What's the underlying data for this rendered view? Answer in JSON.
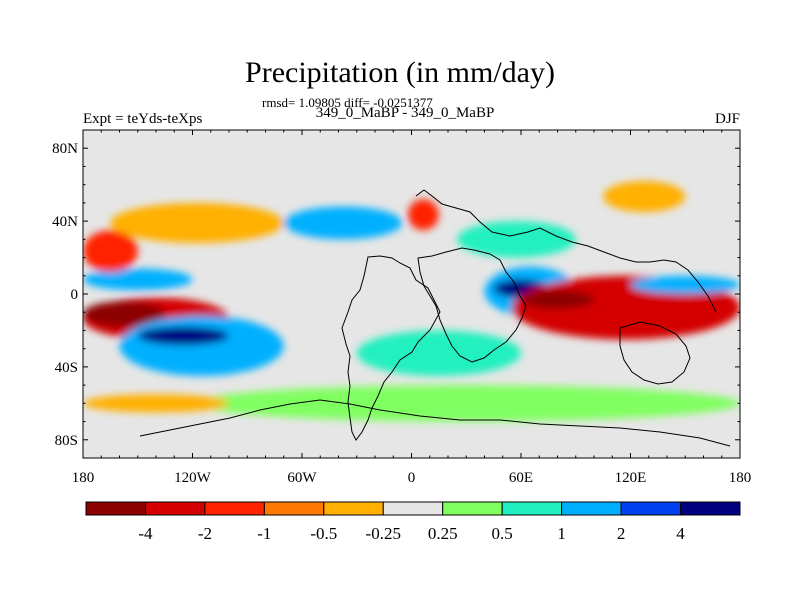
{
  "title": "Precipitation (in mm/day)",
  "stats_line": "rmsd= 1.09805 diff= -0.0251377",
  "left_string": "Expt = teYds-teXps",
  "center_string": "349_0_MaBP - 349_0_MaBP",
  "right_string": "DJF",
  "chart_data": {
    "type": "heatmap",
    "title": "Precipitation (in mm/day)",
    "subtitle": "349_0_MaBP - 349_0_MaBP",
    "xlabel": "",
    "ylabel": "",
    "xlim": [
      -180,
      180
    ],
    "ylim": [
      -90,
      90
    ],
    "x_ticks": [
      -180,
      -120,
      -60,
      0,
      60,
      120,
      180
    ],
    "x_tick_labels": [
      "180",
      "120W",
      "60W",
      "0",
      "60E",
      "120E",
      "180"
    ],
    "y_ticks": [
      80,
      40,
      0,
      -40,
      -80
    ],
    "y_tick_labels": [
      "80N",
      "40N",
      "0",
      "40S",
      "80S"
    ],
    "colorbar": {
      "levels": [
        -4,
        -2,
        -1,
        -0.5,
        -0.25,
        0.25,
        0.5,
        1,
        2,
        4
      ],
      "labels": [
        "-4",
        "-2",
        "-1",
        "-0.5",
        "-0.25",
        "0.25",
        "0.5",
        "1",
        "2",
        "4"
      ],
      "colors": [
        "#8c0000",
        "#d40000",
        "#ff2400",
        "#ff7a00",
        "#ffb000",
        "#e6e6e6",
        "#80ff60",
        "#20f0c0",
        "#00b0ff",
        "#0040f0",
        "#000080"
      ]
    },
    "background_color": "#e6e6e6",
    "anomaly_regions": [
      {
        "name": "e-pacific-dry",
        "lon": [
          -180,
          -100
        ],
        "lat": [
          -25,
          -2
        ],
        "value": -2.5
      },
      {
        "name": "e-pacific-dry-core",
        "lon": [
          -180,
          -135
        ],
        "lat": [
          -18,
          -4
        ],
        "value": -4.5
      },
      {
        "name": "s-pacific-wet",
        "lon": [
          -160,
          -70
        ],
        "lat": [
          -45,
          -12
        ],
        "value": 1.5
      },
      {
        "name": "s-pacific-wet-core",
        "lon": [
          -150,
          -100
        ],
        "lat": [
          -28,
          -18
        ],
        "value": 5
      },
      {
        "name": "n-pacific-wet",
        "lon": [
          -180,
          -120
        ],
        "lat": [
          2,
          14
        ],
        "value": 1.5
      },
      {
        "name": "n-pacific-dry",
        "lon": [
          -180,
          -150
        ],
        "lat": [
          12,
          35
        ],
        "value": -1.5
      },
      {
        "name": "n-atlantic-dry-band",
        "lon": [
          -165,
          -70
        ],
        "lat": [
          28,
          50
        ],
        "value": -0.4
      },
      {
        "name": "n-atlantic-wet",
        "lon": [
          -70,
          -5
        ],
        "lat": [
          30,
          48
        ],
        "value": 1
      },
      {
        "name": "europe-dry",
        "lon": [
          -2,
          15
        ],
        "lat": [
          35,
          52
        ],
        "value": -2
      },
      {
        "name": "n-africa-wet",
        "lon": [
          25,
          90
        ],
        "lat": [
          20,
          40
        ],
        "value": 0.8
      },
      {
        "name": "indian-wet",
        "lon": [
          40,
          90
        ],
        "lat": [
          -12,
          15
        ],
        "value": 1.5
      },
      {
        "name": "indian-wet-core",
        "lon": [
          45,
          75
        ],
        "lat": [
          -2,
          8
        ],
        "value": 5
      },
      {
        "name": "maritime-dry",
        "lon": [
          55,
          180
        ],
        "lat": [
          -25,
          10
        ],
        "value": -2.5
      },
      {
        "name": "maritime-dry-core",
        "lon": [
          60,
          100
        ],
        "lat": [
          -8,
          2
        ],
        "value": -5
      },
      {
        "name": "w-pacific-wet",
        "lon": [
          120,
          180
        ],
        "lat": [
          0,
          10
        ],
        "value": 1
      },
      {
        "name": "asia-dry",
        "lon": [
          105,
          150
        ],
        "lat": [
          45,
          62
        ],
        "value": -0.5
      },
      {
        "name": "s-atlantic-wet",
        "lon": [
          -30,
          60
        ],
        "lat": [
          -45,
          -20
        ],
        "value": 0.6
      },
      {
        "name": "southern-ocean-wet",
        "lon": [
          -120,
          180
        ],
        "lat": [
          -70,
          -50
        ],
        "value": 0.4
      },
      {
        "name": "southern-ocean-dry",
        "lon": [
          -180,
          -100
        ],
        "lat": [
          -65,
          -55
        ],
        "value": -0.4
      }
    ]
  }
}
